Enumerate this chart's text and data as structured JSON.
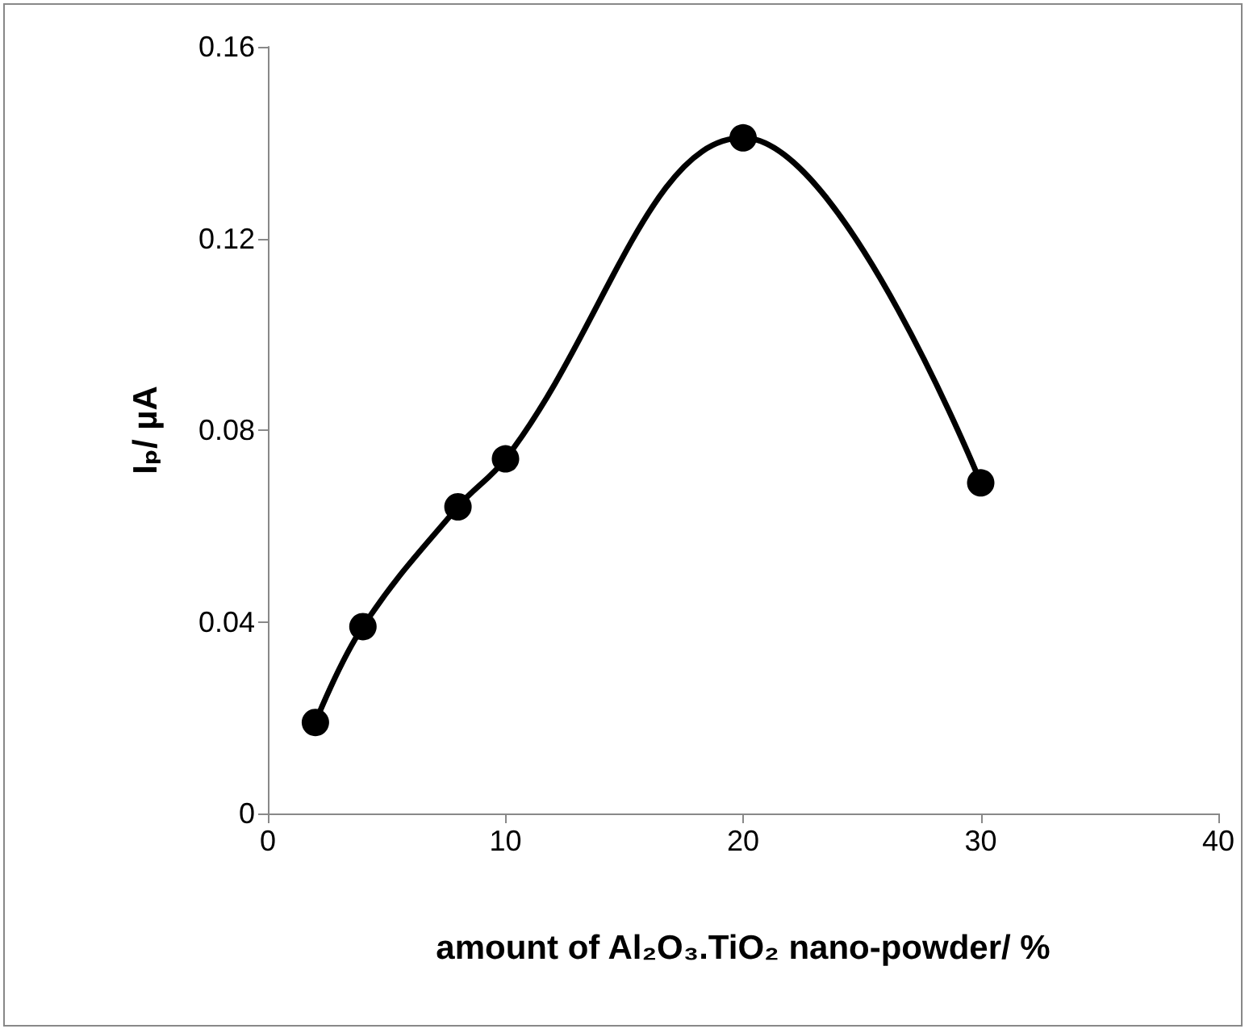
{
  "chart_data": {
    "type": "line",
    "xlabel": "amount of Al₂O₃.TiO₂ nano-powder/ %",
    "ylabel": "Iₚ/ µA",
    "x": [
      2,
      4,
      8,
      10,
      20,
      30
    ],
    "series": [
      {
        "color": "#000000",
        "values": [
          0.019,
          0.039,
          0.064,
          0.074,
          0.141,
          0.069
        ]
      }
    ],
    "xlim": [
      0,
      40
    ],
    "xticks": [
      0,
      10,
      20,
      30,
      40
    ],
    "ylim": [
      0,
      0.16
    ],
    "yticks": [
      0,
      0.04,
      0.08,
      0.12,
      0.16
    ],
    "grid": false,
    "marker": "circle",
    "line_style": "solid"
  }
}
